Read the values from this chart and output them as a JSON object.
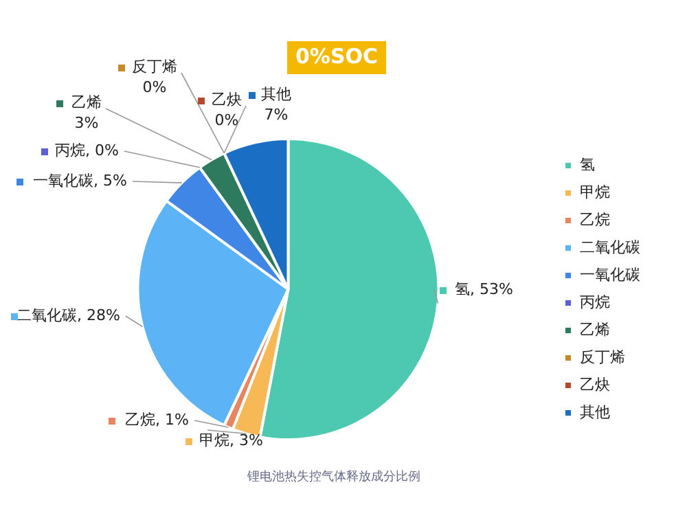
{
  "chart_data": {
    "type": "pie",
    "title": "0%SOC",
    "categories": [
      "氢",
      "甲烷",
      "乙烷",
      "二氧化碳",
      "一氧化碳",
      "丙烷",
      "乙烯",
      "反丁烯",
      "乙炔",
      "其他"
    ],
    "values": [
      53,
      3,
      1,
      28,
      5,
      0,
      3,
      0,
      0,
      7
    ],
    "value_labels": [
      "氢, 53%",
      "甲烷, 3%",
      "乙烷, 1%",
      "二氧化碳, 28%",
      "一氧化碳, 5%",
      "丙烷, 0%",
      "乙烯\n3%",
      "反丁烯\n0%",
      "乙炔\n0%",
      "其他\n7%"
    ],
    "colors": [
      "#4cc9b0",
      "#f7b955",
      "#e8845e",
      "#5cb3f5",
      "#3f86e6",
      "#5d5fd6",
      "#2e7a5e",
      "#c48a2a",
      "#b5482a",
      "#1a6fc4"
    ],
    "legend": "right",
    "annotations": [
      "锂电池热失控气体释放成分比例"
    ]
  }
}
